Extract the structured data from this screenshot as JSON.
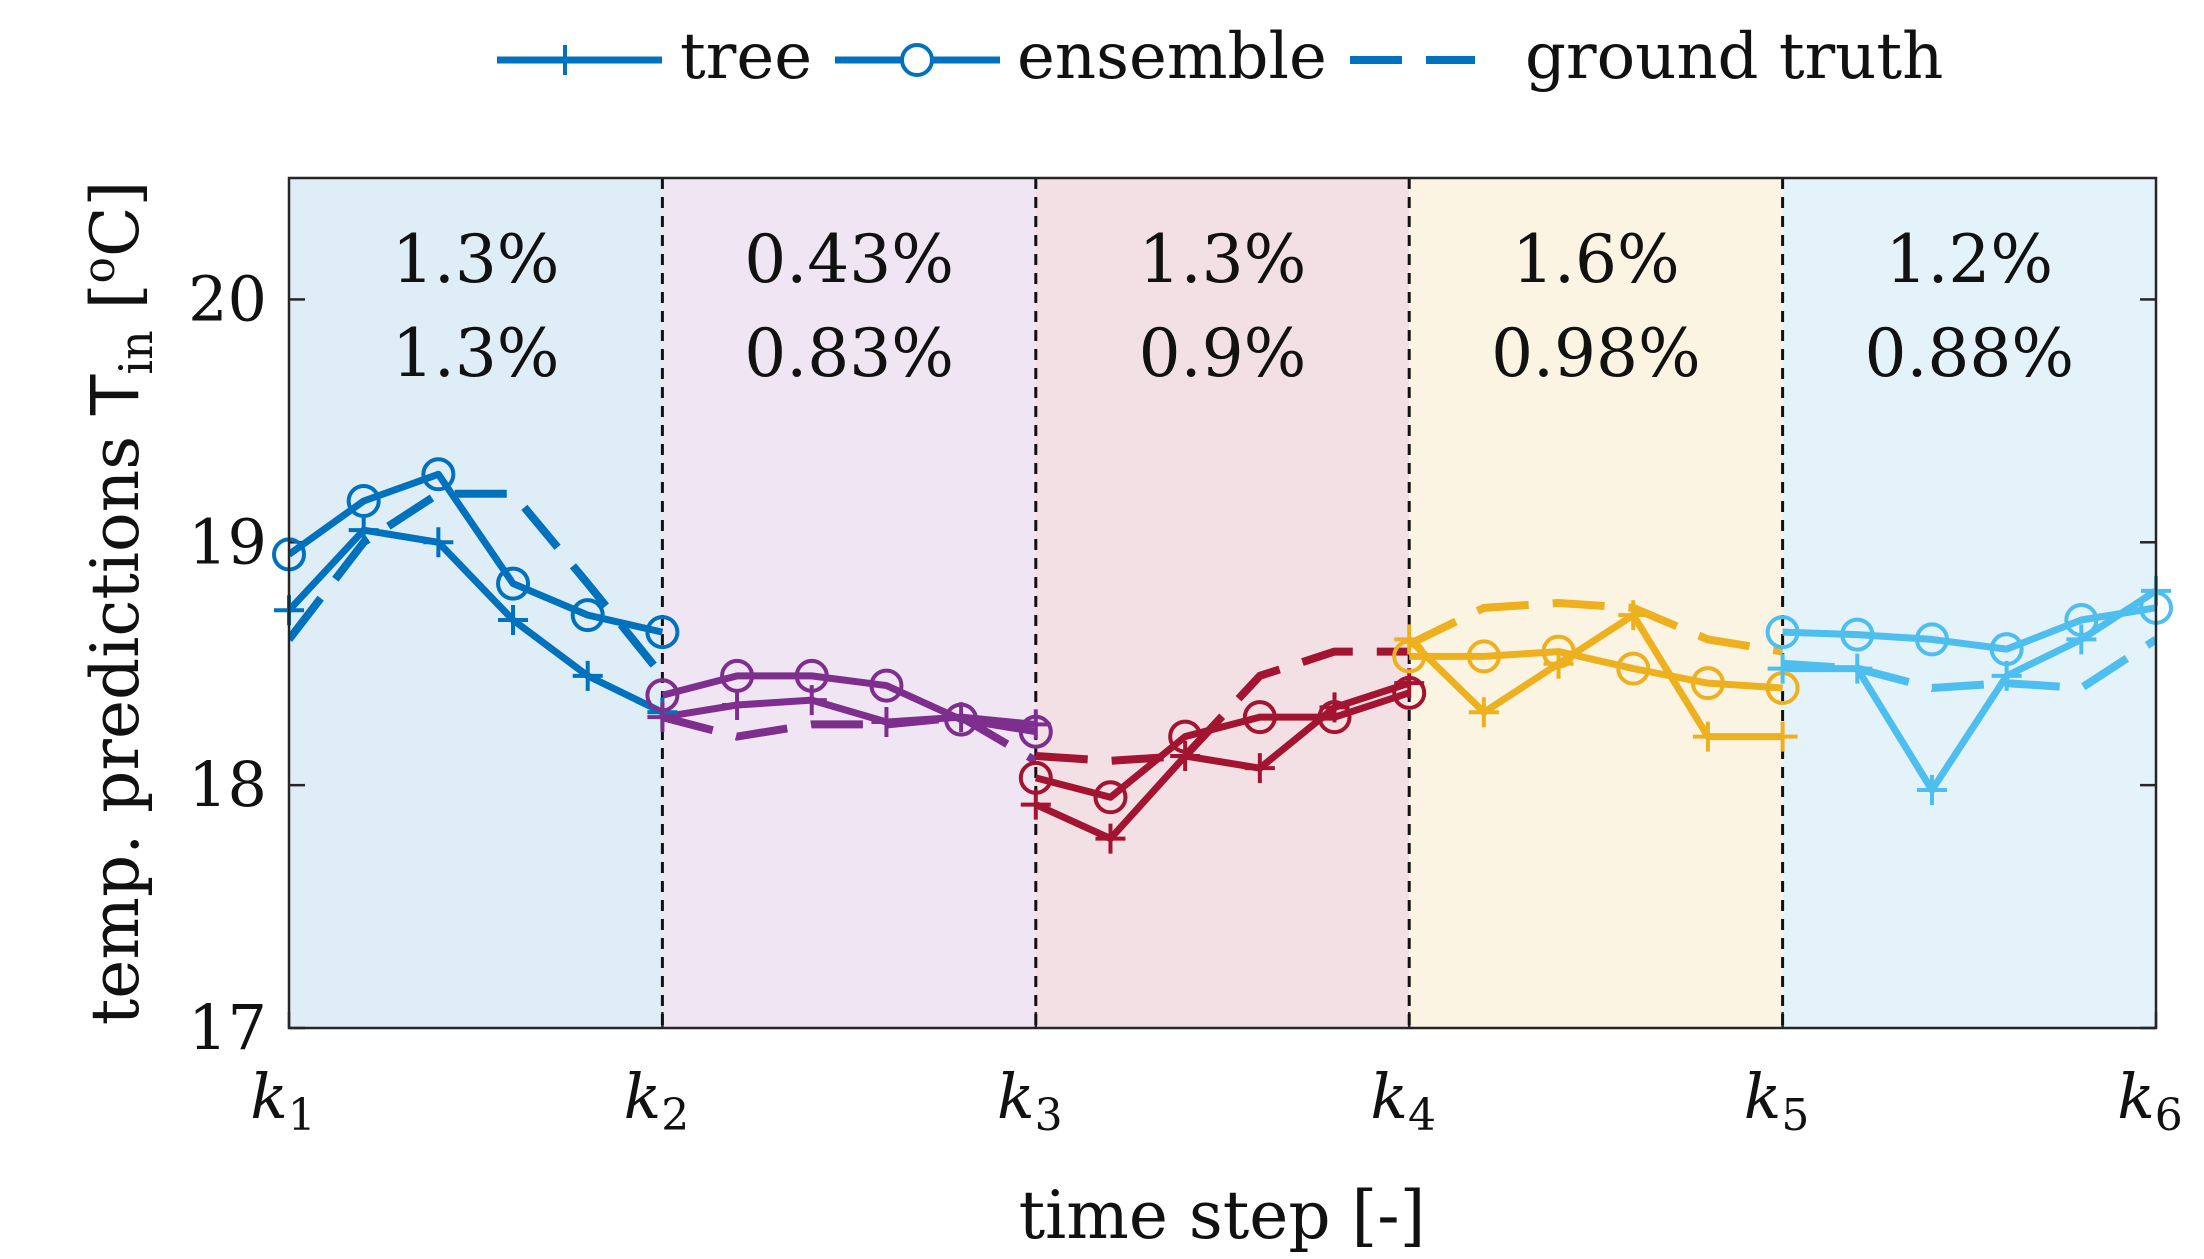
{
  "chart_data": {
    "type": "line",
    "xlabel": "time step [-]",
    "ylabel_prefix": "temp. predictions ",
    "ylabel_symbol": "T",
    "ylabel_subscript": "in",
    "ylabel_unit_open": " [",
    "ylabel_unit_sup": "o",
    "ylabel_unit_close": "C]",
    "ylim": [
      17,
      20.5
    ],
    "yticks": [
      "17",
      "18",
      "19",
      "20"
    ],
    "xlim": [
      0,
      5
    ],
    "xticks": [
      {
        "base": "k",
        "sub": "1"
      },
      {
        "base": "k",
        "sub": "2"
      },
      {
        "base": "k",
        "sub": "3"
      },
      {
        "base": "k",
        "sub": "4"
      },
      {
        "base": "k",
        "sub": "5"
      },
      {
        "base": "k",
        "sub": "6"
      }
    ],
    "legend": {
      "position": "top",
      "entries": [
        {
          "label": "tree",
          "style": "solid-plus"
        },
        {
          "label": "ensemble",
          "style": "solid-circle"
        },
        {
          "label": "ground truth",
          "style": "dashed"
        }
      ]
    },
    "segments": [
      {
        "color": "#0072BD",
        "shade": "#dfedf7",
        "tree_error": "1.3%",
        "ensemble_error": "1.3%",
        "x": [
          0,
          0.2,
          0.4,
          0.6,
          0.8,
          1.0
        ],
        "tree": [
          18.72,
          19.05,
          19.0,
          18.68,
          18.45,
          18.3
        ],
        "ensemble": [
          18.95,
          19.17,
          19.28,
          18.83,
          18.7,
          18.63
        ],
        "ground_truth": [
          18.6,
          19.0,
          19.2,
          19.2,
          18.83,
          18.45
        ]
      },
      {
        "color": "#7E2F8E",
        "shade": "#f0e5f2",
        "tree_error": "0.43%",
        "ensemble_error": "0.83%",
        "x": [
          1.0,
          1.2,
          1.4,
          1.6,
          1.8,
          2.0
        ],
        "tree": [
          18.28,
          18.33,
          18.35,
          18.26,
          18.28,
          18.25
        ],
        "ensemble": [
          18.37,
          18.45,
          18.45,
          18.41,
          18.27,
          18.22
        ],
        "ground_truth": [
          18.28,
          18.2,
          18.25,
          18.25,
          18.28,
          18.1
        ]
      },
      {
        "color": "#A2142F",
        "shade": "#f2e0e4",
        "tree_error": "1.3%",
        "ensemble_error": "0.9%",
        "x": [
          2.0,
          2.2,
          2.4,
          2.6,
          2.8,
          3.0
        ],
        "tree": [
          17.92,
          17.78,
          18.12,
          18.07,
          18.32,
          18.42
        ],
        "ensemble": [
          18.03,
          17.95,
          18.2,
          18.28,
          18.28,
          18.38
        ],
        "ground_truth": [
          18.12,
          18.1,
          18.12,
          18.45,
          18.55,
          18.55
        ]
      },
      {
        "color": "#EDB120",
        "shade": "#fcf4e3",
        "tree_error": "1.6%",
        "ensemble_error": "0.98%",
        "x": [
          3.0,
          3.2,
          3.4,
          3.6,
          3.8,
          4.0
        ],
        "tree": [
          18.6,
          18.3,
          18.5,
          18.7,
          18.2,
          18.2
        ],
        "ensemble": [
          18.53,
          18.53,
          18.55,
          18.48,
          18.42,
          18.4
        ],
        "ground_truth": [
          18.58,
          18.73,
          18.75,
          18.73,
          18.6,
          18.55
        ]
      },
      {
        "color": "#4DBEEE",
        "shade": "#e4f2fa",
        "tree_error": "1.2%",
        "ensemble_error": "0.88%",
        "x": [
          4.0,
          4.2,
          4.4,
          4.6,
          4.8,
          5.0
        ],
        "tree": [
          18.48,
          18.48,
          17.98,
          18.45,
          18.6,
          18.8
        ],
        "ensemble": [
          18.63,
          18.62,
          18.6,
          18.56,
          18.68,
          18.73
        ],
        "ground_truth": [
          18.5,
          18.48,
          18.4,
          18.42,
          18.4,
          18.6
        ]
      }
    ]
  }
}
